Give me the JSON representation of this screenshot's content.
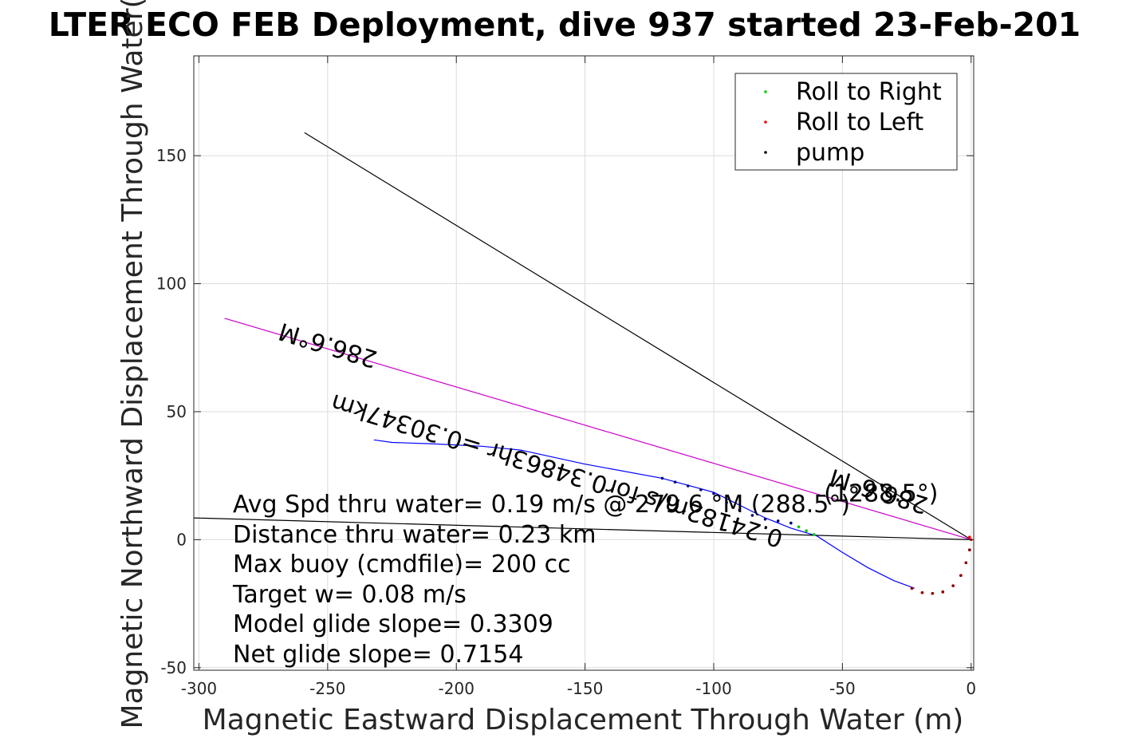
{
  "chart_data": {
    "type": "line",
    "title": "LTER ECO FEB Deployment, dive 937 started 23-Feb-201",
    "xlabel": "Magnetic Eastward Displacement Through Water (m)",
    "ylabel": "Magnetic Northward Displacement Through Water(",
    "xlim": [
      -302,
      1
    ],
    "ylim": [
      -51,
      189
    ],
    "xticks": [
      -300,
      -250,
      -200,
      -150,
      -100,
      -50,
      0
    ],
    "xtick_labels": [
      "-300",
      "-250",
      "-200",
      "-150",
      "-100",
      "-50",
      "0"
    ],
    "yticks": [
      -50,
      0,
      50,
      100,
      150
    ],
    "ytick_labels": [
      "-50",
      "0",
      "50",
      "100",
      "150"
    ],
    "grid": true,
    "legend": {
      "placement": "top-right",
      "entries": [
        {
          "label": "Roll to Right",
          "color": "#00cc00"
        },
        {
          "label": "Roll to Left",
          "color": "#ff0000"
        },
        {
          "label": "pump",
          "color": "#000000"
        }
      ]
    },
    "series": [
      {
        "name": "",
        "kind": "line",
        "color": "#000000",
        "x": [
          -259,
          0
        ],
        "y": [
          159,
          0
        ]
      },
      {
        "name": "",
        "kind": "line",
        "color": "#000000",
        "x": [
          -302,
          0
        ],
        "y": [
          8.5,
          0
        ]
      },
      {
        "name": "",
        "kind": "line",
        "color": "#cc00cc",
        "x": [
          -290,
          0
        ],
        "y": [
          86.5,
          0
        ]
      },
      {
        "name": "",
        "kind": "line",
        "color": "#0000ff",
        "x": [
          -232,
          -225,
          -210,
          -190,
          -175,
          -150,
          -120,
          -100,
          -80,
          -70,
          -60,
          -50,
          -40,
          -30,
          -22
        ],
        "y": [
          39,
          38,
          37.5,
          36.5,
          35,
          29.5,
          24,
          18.5,
          8.5,
          4.5,
          1.5,
          -5,
          -11,
          -16,
          -19
        ]
      },
      {
        "name": "Roll to Left",
        "kind": "points",
        "color": "#ff0000",
        "x": [
          -23,
          -19,
          -15,
          -11,
          -7,
          -4,
          -2,
          -0.6,
          0,
          -0.6
        ],
        "y": [
          -19,
          -20.7,
          -21,
          -20.4,
          -18,
          -14,
          -9,
          -4,
          0,
          1
        ]
      },
      {
        "name": "Roll to Right",
        "kind": "points",
        "color": "#00cc00",
        "x": [
          -70,
          -67,
          -64,
          -61
        ],
        "y": [
          6.5,
          5,
          3.5,
          2
        ]
      },
      {
        "name": "",
        "kind": "points",
        "color": "#000080",
        "x": [
          -120,
          -115,
          -110,
          -105,
          -100,
          -95,
          -90,
          -85,
          -80,
          -75,
          -70
        ],
        "y": [
          24,
          22.5,
          21,
          19.5,
          18,
          14.5,
          11.5,
          9.5,
          8,
          7.3,
          6.5
        ]
      },
      {
        "name": "",
        "kind": "points",
        "color": "#8b0000",
        "x": [
          -23,
          -19,
          -15,
          -11,
          -7,
          -4,
          -2,
          -0.6
        ],
        "y": [
          -19,
          -20.7,
          -21,
          -20.4,
          -18,
          -14,
          -9,
          -4
        ]
      }
    ],
    "annotations": [
      {
        "text": "286.6°M",
        "x": -249,
        "y": 79,
        "rotation": 197
      },
      {
        "text": "0.24182m/s for0.34863hr =0.30347km",
        "x": -160,
        "y": 30,
        "rotation": 197
      },
      {
        "text": "286.6°M",
        "x": -35,
        "y": 22,
        "rotation": 197
      },
      {
        "text": "(1288.5°)",
        "x": -35,
        "y": 15,
        "rotation": 0
      }
    ],
    "info_lines": [
      "Avg Spd thru water=  0.19 m/s @ 279.6 °M (288.5°)",
      "Distance thru water=  0.23 km",
      "Max buoy (cmdfile)= 200 cc",
      "Target w= 0.08 m/s",
      "Model glide slope= 0.3309",
      "Net glide slope= 0.7154"
    ]
  }
}
